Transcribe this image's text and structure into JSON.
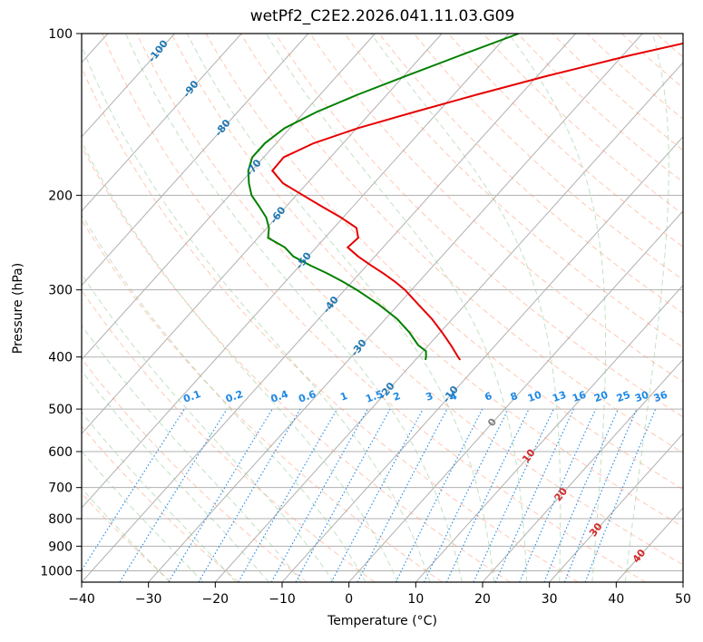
{
  "chart_data": {
    "type": "skew-t",
    "title": "wetPf2_C2E2.2026.041.11.03.G09",
    "xlabel": "Temperature (°C)",
    "ylabel": "Pressure (hPa)",
    "xlim": [
      -40,
      50
    ],
    "ylim": [
      1050,
      100
    ],
    "x_ticks": [
      -40,
      -30,
      -20,
      -10,
      0,
      10,
      20,
      30,
      40,
      50
    ],
    "y_ticks": [
      100,
      200,
      300,
      400,
      500,
      600,
      700,
      800,
      900,
      1000
    ],
    "grid": true,
    "series": [
      {
        "kind": "temperature",
        "color": "#e60000",
        "points": [
          [
            100,
            -17.4
          ],
          [
            110,
            -29.1
          ],
          [
            120,
            -38.6
          ],
          [
            130,
            -46.6
          ],
          [
            140,
            -53.6
          ],
          [
            150,
            -59.8
          ],
          [
            160,
            -64.4
          ],
          [
            170,
            -67.0
          ],
          [
            180,
            -66.9
          ],
          [
            190,
            -63.6
          ],
          [
            200,
            -59.0
          ],
          [
            210,
            -54.6
          ],
          [
            220,
            -50.3
          ],
          [
            230,
            -46.6
          ],
          [
            240,
            -45.0
          ],
          [
            250,
            -45.3
          ],
          [
            260,
            -42.5
          ],
          [
            270,
            -39.4
          ],
          [
            280,
            -36.3
          ],
          [
            290,
            -33.5
          ],
          [
            300,
            -31.0
          ],
          [
            320,
            -26.9
          ],
          [
            340,
            -23.0
          ],
          [
            360,
            -19.7
          ],
          [
            380,
            -16.7
          ],
          [
            400,
            -14.0
          ],
          [
            405,
            -13.3
          ]
        ]
      },
      {
        "kind": "dewpoint",
        "color": "#008000",
        "points": [
          [
            100,
            -48.5
          ],
          [
            110,
            -54.4
          ],
          [
            120,
            -59.7
          ],
          [
            130,
            -64.4
          ],
          [
            140,
            -68.2
          ],
          [
            150,
            -70.8
          ],
          [
            160,
            -71.7
          ],
          [
            170,
            -71.7
          ],
          [
            180,
            -70.5
          ],
          [
            190,
            -68.7
          ],
          [
            200,
            -66.7
          ],
          [
            210,
            -64.0
          ],
          [
            220,
            -61.5
          ],
          [
            230,
            -59.7
          ],
          [
            240,
            -58.5
          ],
          [
            250,
            -54.7
          ],
          [
            260,
            -52.2
          ],
          [
            270,
            -48.5
          ],
          [
            280,
            -44.7
          ],
          [
            290,
            -41.3
          ],
          [
            300,
            -38.2
          ],
          [
            320,
            -32.8
          ],
          [
            340,
            -28.2
          ],
          [
            360,
            -24.6
          ],
          [
            380,
            -21.6
          ],
          [
            390,
            -19.6
          ],
          [
            400,
            -18.8
          ],
          [
            405,
            -18.5
          ]
        ]
      }
    ],
    "isotherm_labels": [
      -100,
      -90,
      -80,
      -70,
      -60,
      -50,
      -40,
      -30,
      -20,
      -10,
      0,
      10,
      20,
      30,
      40
    ],
    "mixing_ratio_labels": [
      "0.1",
      "0.2",
      "0.4",
      "0.6",
      "1",
      "1.5",
      "2",
      "3",
      "4",
      "6",
      "8",
      "10",
      "13",
      "16",
      "20",
      "25",
      "30",
      "36"
    ],
    "mixing_ratio_values": [
      0.1,
      0.2,
      0.4,
      0.6,
      1,
      1.5,
      2,
      3,
      4,
      6,
      8,
      10,
      13,
      16,
      20,
      25,
      30,
      36
    ]
  }
}
